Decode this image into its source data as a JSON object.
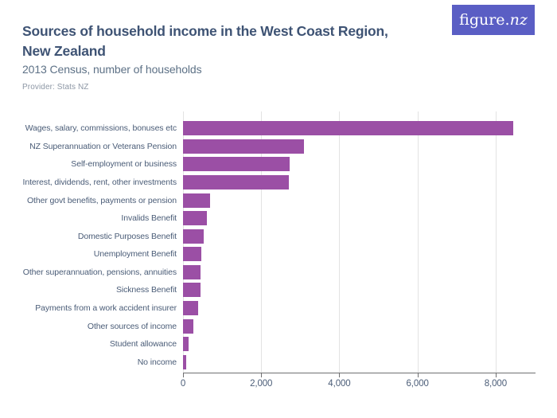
{
  "header": {
    "title_lines": [
      "Sources of household income in the West Coast Region,",
      "New Zealand"
    ],
    "subtitle": "2013 Census, number of households",
    "provider": "Provider: Stats NZ",
    "logo": {
      "text_roman": "figure.",
      "text_italic": "nz",
      "bg_color": "#5a5ec4"
    }
  },
  "colors": {
    "title": "#3e5374",
    "subtitle": "#5d7186",
    "provider": "#8d97a5",
    "labels_and_ticks": "#4a5c77",
    "gridline": "#e3e3e3",
    "axis": "#6f7071",
    "bar": "#9b4fa5",
    "logo_background": "#5a5ec4"
  },
  "chart_data": {
    "type": "bar",
    "orientation": "horizontal",
    "title": "Sources of household income in the West Coast Region, New Zealand",
    "subtitle": "2013 Census, number of households",
    "xlabel": "",
    "ylabel": "",
    "categories": [
      "Wages, salary, commissions, bonuses etc",
      "NZ Superannuation or Veterans Pension",
      "Self-employment or business",
      "Interest, dividends, rent, other investments",
      "Other govt benefits, payments or pension",
      "Invalids Benefit",
      "Domestic Purposes Benefit",
      "Unemployment Benefit",
      "Other superannuation, pensions, annuities",
      "Sickness Benefit",
      "Payments from a work accident insurer",
      "Other sources of income",
      "Student allowance",
      "No income"
    ],
    "values": [
      8450,
      3100,
      2720,
      2700,
      700,
      620,
      520,
      460,
      450,
      450,
      380,
      260,
      140,
      80
    ],
    "xlim": [
      0,
      9000
    ],
    "ticks": [
      0,
      2000,
      4000,
      6000,
      8000
    ],
    "tick_labels": [
      "0",
      "2,000",
      "4,000",
      "6,000",
      "8,000"
    ],
    "grid": true,
    "legend": false,
    "bar_color": "#9b4fa5"
  }
}
